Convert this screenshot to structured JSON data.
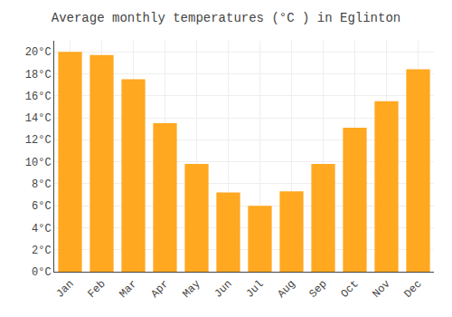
{
  "chart_data": {
    "type": "bar",
    "title": "Average monthly temperatures (°C ) in Eglinton",
    "categories": [
      "Jan",
      "Feb",
      "Mar",
      "Apr",
      "May",
      "Jun",
      "Jul",
      "Aug",
      "Sep",
      "Oct",
      "Nov",
      "Dec"
    ],
    "values": [
      20.0,
      19.7,
      17.5,
      13.5,
      9.8,
      7.2,
      6.0,
      7.3,
      9.8,
      13.1,
      15.5,
      18.4
    ],
    "color": "#FFA820",
    "ylim": [
      0,
      21
    ],
    "yticks": [
      {
        "value": 0,
        "label": "0°C"
      },
      {
        "value": 2,
        "label": "2°C"
      },
      {
        "value": 4,
        "label": "4°C"
      },
      {
        "value": 6,
        "label": "6°C"
      },
      {
        "value": 8,
        "label": "8°C"
      },
      {
        "value": 10,
        "label": "10°C"
      },
      {
        "value": 12,
        "label": "12°C"
      },
      {
        "value": 14,
        "label": "14°C"
      },
      {
        "value": 16,
        "label": "16°C"
      },
      {
        "value": 18,
        "label": "18°C"
      },
      {
        "value": 20,
        "label": "20°C"
      }
    ],
    "grid": true
  }
}
